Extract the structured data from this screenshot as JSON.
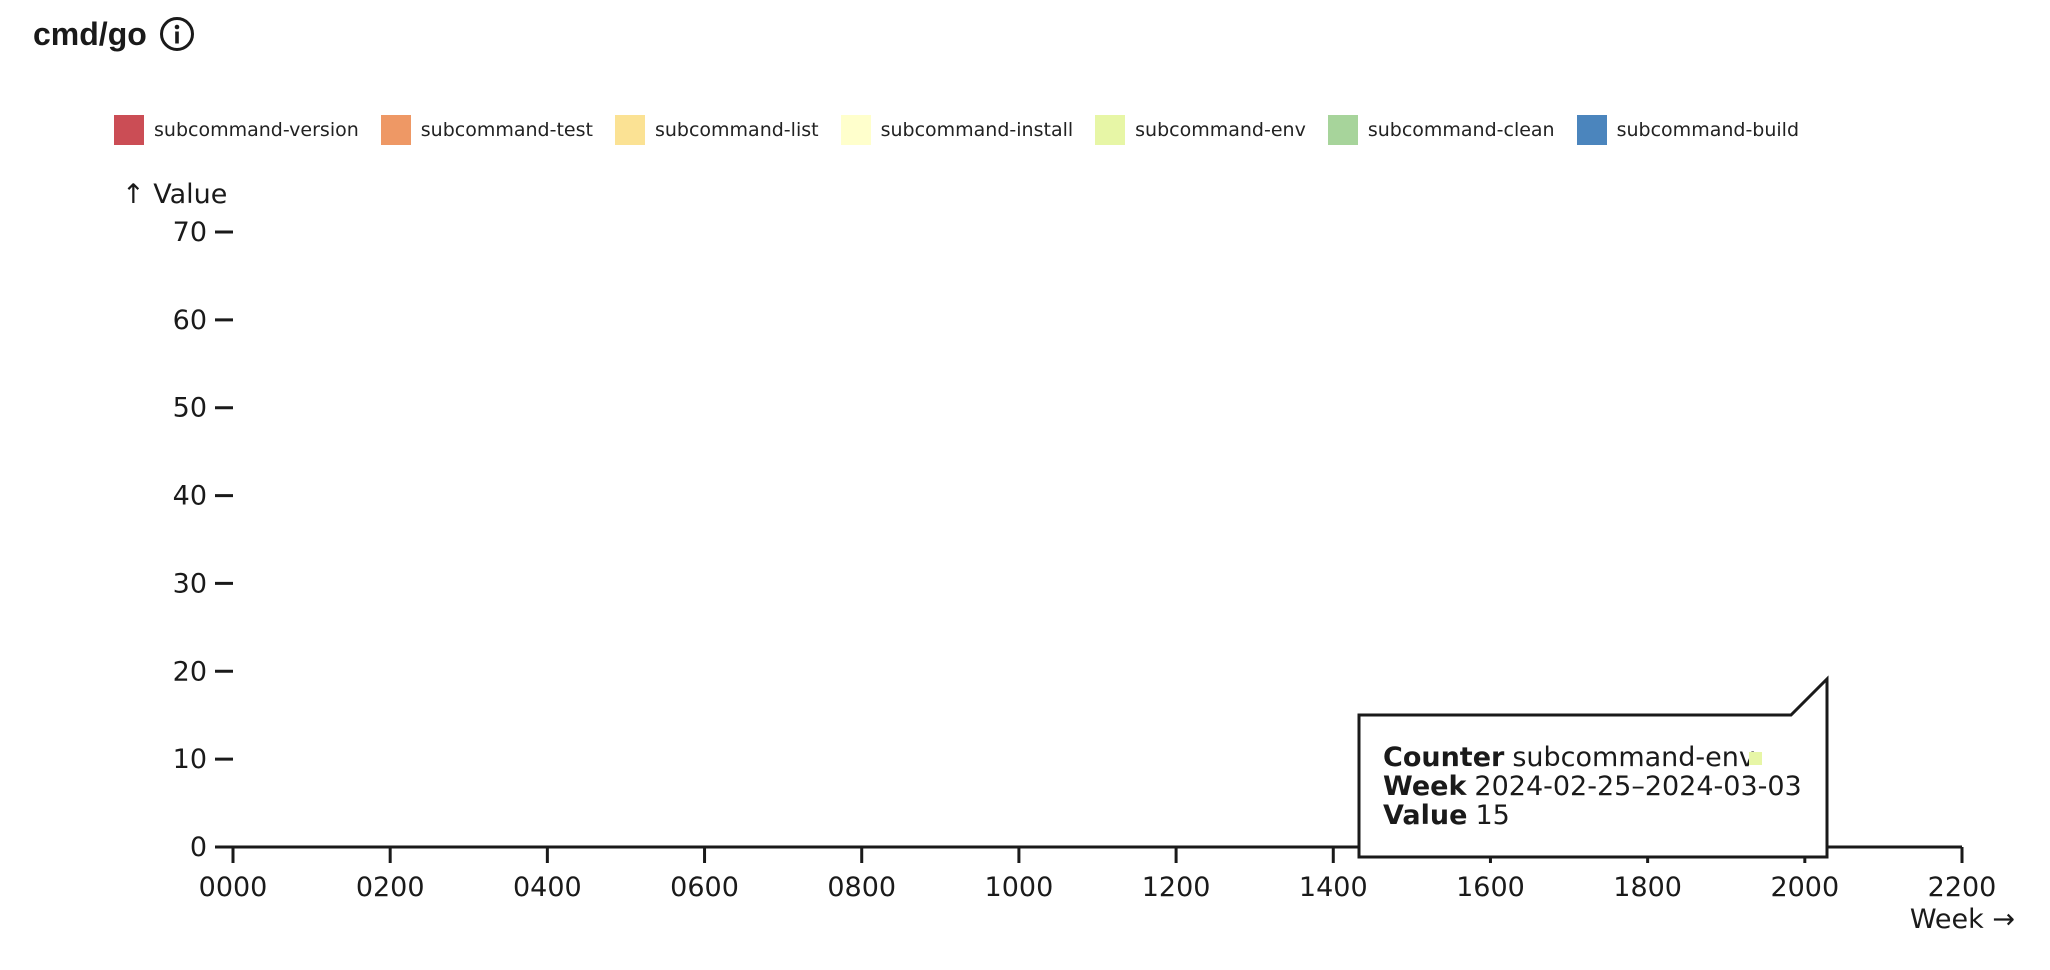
{
  "header": {
    "title": "cmd/go",
    "info_icon": "info-circle-icon"
  },
  "chart_data": {
    "type": "bar",
    "title": "cmd/go",
    "xlabel": "Week",
    "ylabel": "Value",
    "xlabel_display": "Week →",
    "ylabel_display": "↑ Value",
    "ylim": [
      0,
      70
    ],
    "yticks": [
      0,
      10,
      20,
      30,
      40,
      50,
      60,
      70
    ],
    "xlim": [
      0,
      2200
    ],
    "xticks": [
      "0000",
      "0200",
      "0400",
      "0600",
      "0800",
      "1000",
      "1200",
      "1400",
      "1600",
      "1800",
      "2000",
      "2200"
    ],
    "legend_position": "top-left",
    "series": [
      {
        "name": "subcommand-version",
        "color": "#cb4d55"
      },
      {
        "name": "subcommand-test",
        "color": "#ee9865"
      },
      {
        "name": "subcommand-list",
        "color": "#fbe294"
      },
      {
        "name": "subcommand-install",
        "color": "#ffffcc"
      },
      {
        "name": "subcommand-env",
        "color": "#e7f6a6"
      },
      {
        "name": "subcommand-clean",
        "color": "#a7d49b"
      },
      {
        "name": "subcommand-build",
        "color": "#4b85bd"
      }
    ],
    "tooltip": {
      "counter_label": "Counter",
      "counter_value": "subcommand-env",
      "counter_color": "#e7f6a6",
      "week_label": "Week",
      "week_value": "2024-02-25–2024-03-03",
      "value_label": "Value",
      "value_value": "15"
    }
  }
}
